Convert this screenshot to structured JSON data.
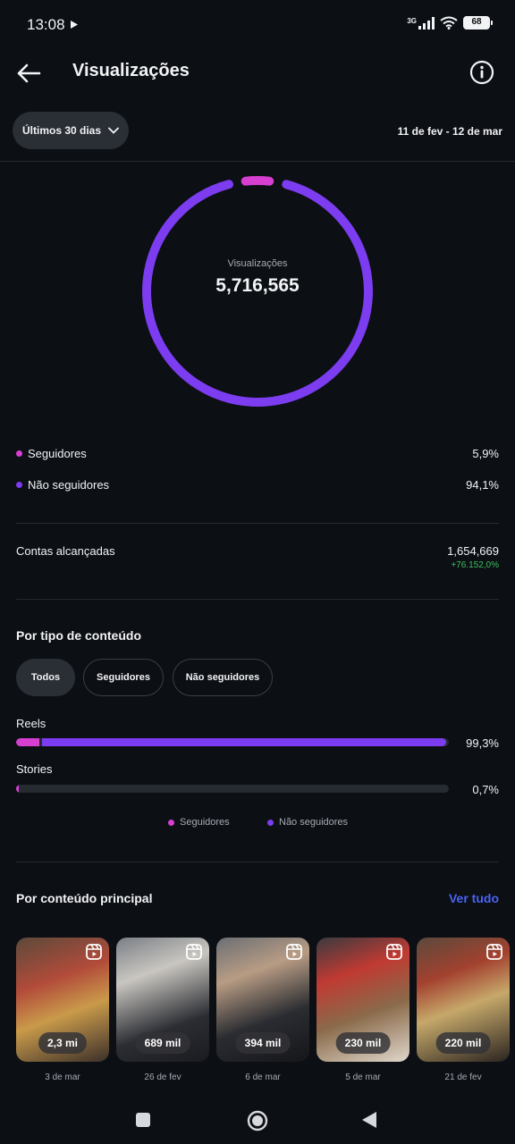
{
  "status_bar": {
    "time": "13:08",
    "network": "3G",
    "battery": "68"
  },
  "header": {
    "title": "Visualizações"
  },
  "filter": {
    "range_label": "Últimos 30 dias",
    "date_range": "11 de fev - 12 de mar"
  },
  "donut": {
    "label": "Visualizações",
    "total": "5,716,565",
    "followers_fraction": 0.059,
    "non_followers_fraction": 0.941
  },
  "audience": [
    {
      "label": "Seguidores",
      "value": "5,9%",
      "color": "#d63fd0"
    },
    {
      "label": "Não seguidores",
      "value": "94,1%",
      "color": "#7c3cf0"
    }
  ],
  "reach": {
    "label": "Contas alcançadas",
    "value": "1,654,669",
    "change": "+76.152,0%"
  },
  "content_type": {
    "title": "Por tipo de conteúdo",
    "chips": [
      "Todos",
      "Seguidores",
      "Não seguidores"
    ],
    "bars": [
      {
        "label": "Reels",
        "total": 0.993,
        "followers_share": 0.055,
        "pct": "99,3%"
      },
      {
        "label": "Stories",
        "total": 0.007,
        "followers_share": 0.8,
        "pct": "0,7%"
      }
    ],
    "legend": [
      "Seguidores",
      "Não seguidores"
    ]
  },
  "top_content": {
    "title": "Por conteúdo principal",
    "see_all": "Ver tudo",
    "items": [
      {
        "count": "2,3 mi",
        "date": "3 de mar"
      },
      {
        "count": "689 mil",
        "date": "26 de fev"
      },
      {
        "count": "394 mil",
        "date": "6 de mar"
      },
      {
        "count": "230 mil",
        "date": "5 de mar"
      },
      {
        "count": "220 mil",
        "date": "21 de fev"
      }
    ]
  },
  "colors": {
    "accent_followers": "#d63fd0",
    "accent_non_followers": "#7c3cf0",
    "link": "#4a63f5",
    "positive": "#3fbf5f"
  }
}
